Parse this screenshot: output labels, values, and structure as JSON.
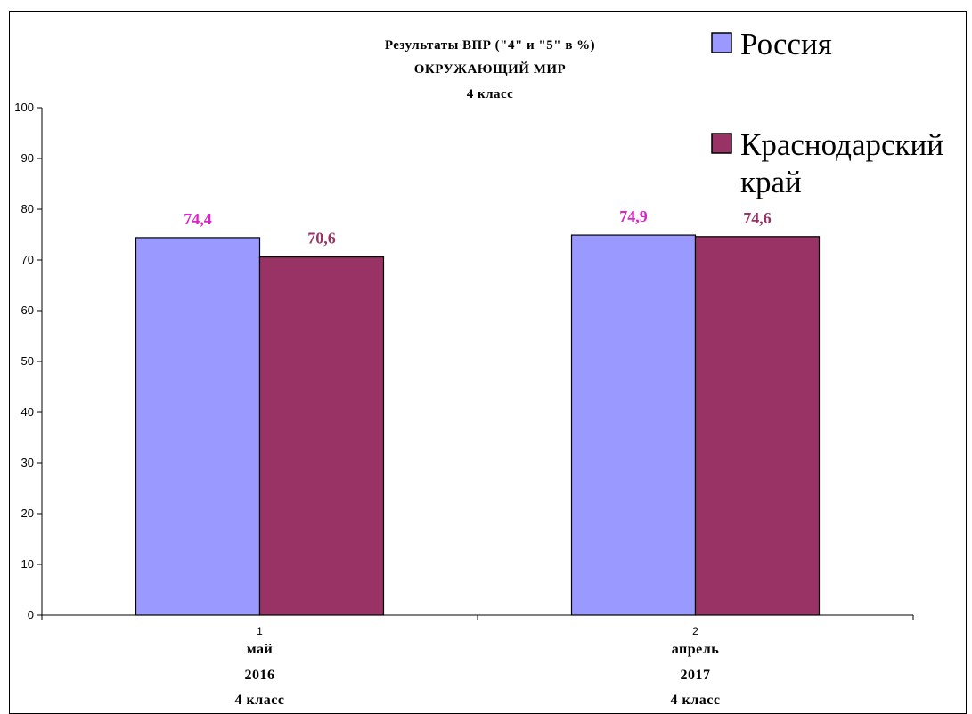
{
  "chart_data": {
    "type": "bar",
    "title_lines": [
      "Результаты ВПР (\"4\" и \"5\"  в  %)",
      "ОКРУЖАЮЩИЙ МИР",
      "4 класс"
    ],
    "categories": [
      {
        "index": "1",
        "lines": [
          "май",
          "2016",
          "4 класс"
        ]
      },
      {
        "index": "2",
        "lines": [
          "апрель",
          "2017",
          "4 класс"
        ]
      }
    ],
    "series": [
      {
        "name": "Россия",
        "values": [
          74.4,
          74.9
        ],
        "labels": [
          "74,4",
          "74,9"
        ],
        "color": "#9999FF",
        "label_color": "#E020C8"
      },
      {
        "name": "Краснодарский край",
        "legend_lines": [
          "Краснодарский",
          "край"
        ],
        "values": [
          70.6,
          74.6
        ],
        "labels": [
          "70,6",
          "74,6"
        ],
        "color": "#993366",
        "label_color": "#993366"
      }
    ],
    "y_ticks": [
      "0",
      "10",
      "20",
      "30",
      "40",
      "50",
      "60",
      "70",
      "80",
      "90",
      "100"
    ],
    "ylim": [
      0,
      100
    ],
    "grid": false,
    "legend_position": "top-right"
  }
}
